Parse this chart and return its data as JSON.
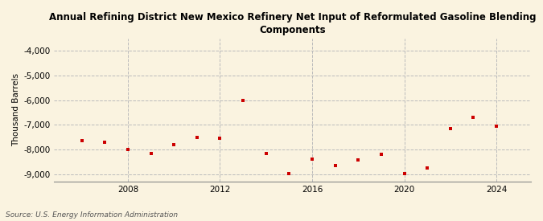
{
  "title": "Annual Refining District New Mexico Refinery Net Input of Reformulated Gasoline Blending\nComponents",
  "ylabel": "Thousand Barrels",
  "source": "Source: U.S. Energy Information Administration",
  "background_color": "#faf3e0",
  "plot_background_color": "#faf3e0",
  "marker_color": "#cc0000",
  "grid_color": "#bbbbbb",
  "ylim": [
    -9300,
    -3500
  ],
  "yticks": [
    -9000,
    -8000,
    -7000,
    -6000,
    -5000,
    -4000
  ],
  "xlim": [
    2004.8,
    2025.5
  ],
  "xticks": [
    2008,
    2012,
    2016,
    2020,
    2024
  ],
  "years": [
    2006,
    2007,
    2008,
    2009,
    2010,
    2011,
    2012,
    2013,
    2014,
    2015,
    2016,
    2017,
    2018,
    2019,
    2020,
    2021,
    2022,
    2023,
    2024
  ],
  "values": [
    -7650,
    -7700,
    -8000,
    -8150,
    -7800,
    -7500,
    -7550,
    -6020,
    -8150,
    -8980,
    -8400,
    -8650,
    -8430,
    -8200,
    -8980,
    -8750,
    -7150,
    -6700,
    -7050
  ]
}
